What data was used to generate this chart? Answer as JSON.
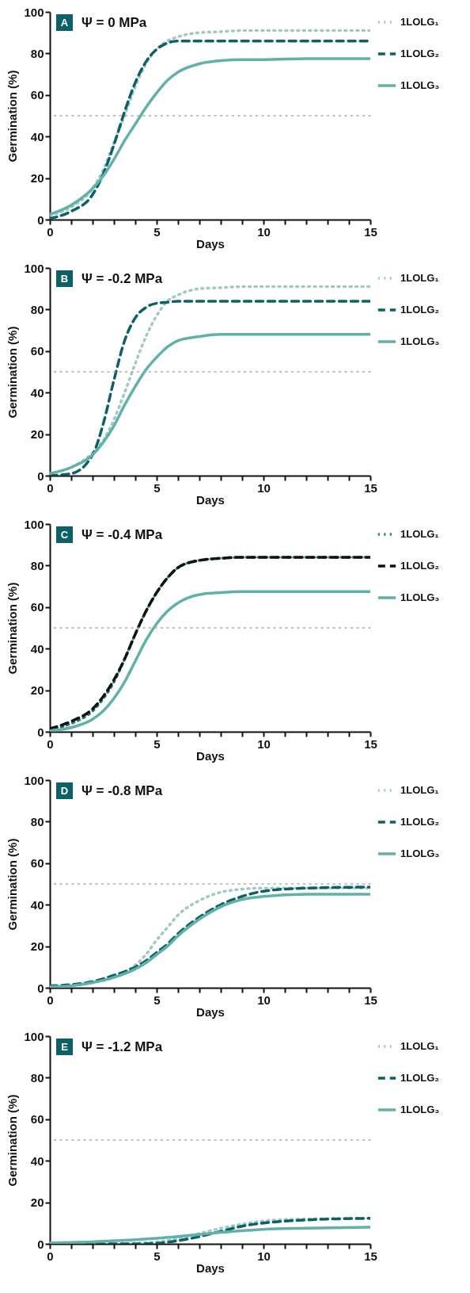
{
  "chart_data": [
    {
      "type": "line",
      "title": "Ψ = 0 MPa",
      "annotations": [
        "A"
      ],
      "xlabel": "Days",
      "ylabel": "Germination (%)",
      "xlim": [
        0,
        15
      ],
      "ylim": [
        0,
        100
      ],
      "xticks": [
        0,
        {
          "value": 1,
          "label": null
        },
        {
          "value": 2,
          "label": null
        },
        {
          "value": 3,
          "label": null
        },
        {
          "value": 4,
          "label": null
        },
        5,
        {
          "value": 6,
          "label": null
        },
        {
          "value": 7,
          "label": null
        },
        {
          "value": 8,
          "label": null
        },
        {
          "value": 9,
          "label": null
        },
        10,
        {
          "value": 11,
          "label": null
        },
        {
          "value": 12,
          "label": null
        },
        {
          "value": 13,
          "label": null
        },
        {
          "value": 14,
          "label": null
        },
        15
      ],
      "yticks": [
        0,
        20,
        40,
        60,
        80,
        100
      ],
      "legend": "top right",
      "ref_lines": [
        {
          "axis": "y",
          "value": 50,
          "color": "#aaaaaa",
          "line_style": "dotted"
        }
      ],
      "x": [
        0,
        1,
        2,
        2.5,
        3,
        3.5,
        4,
        4.5,
        5,
        5.5,
        6,
        7,
        8,
        9,
        10,
        12,
        15
      ],
      "series": [
        {
          "name": "1LOLG₁",
          "color": "#a3c9c6",
          "line_style": "dotted",
          "values": [
            2,
            6,
            15,
            24,
            37,
            50,
            64,
            75,
            82,
            86,
            88,
            90,
            90.5,
            91,
            91,
            91,
            91
          ]
        },
        {
          "name": "1LOLG₂",
          "color": "#0b6166",
          "line_style": "dashed",
          "values": [
            0.5,
            4,
            12,
            22,
            36,
            52,
            66,
            76,
            82,
            85,
            86,
            86,
            86,
            86,
            86,
            86,
            86
          ]
        },
        {
          "name": "1LOLG₃",
          "color": "#62b1a9",
          "line_style": "solid",
          "values": [
            2.5,
            7,
            15,
            21,
            29,
            38,
            46,
            54,
            61,
            67,
            71,
            75,
            76.5,
            77,
            77,
            77.5,
            77.5
          ]
        }
      ]
    },
    {
      "type": "line",
      "title": "Ψ = -0.2 MPa",
      "annotations": [
        "B"
      ],
      "xlabel": "Days",
      "ylabel": "Germination (%)",
      "xlim": [
        0,
        15
      ],
      "ylim": [
        0,
        100
      ],
      "xticks": [
        0,
        {
          "value": 1,
          "label": null
        },
        {
          "value": 2,
          "label": null
        },
        {
          "value": 3,
          "label": null
        },
        {
          "value": 4,
          "label": null
        },
        5,
        {
          "value": 6,
          "label": null
        },
        {
          "value": 7,
          "label": null
        },
        {
          "value": 8,
          "label": null
        },
        {
          "value": 9,
          "label": null
        },
        10,
        {
          "value": 11,
          "label": null
        },
        {
          "value": 12,
          "label": null
        },
        {
          "value": 13,
          "label": null
        },
        {
          "value": 14,
          "label": null
        },
        15
      ],
      "yticks": [
        0,
        20,
        40,
        60,
        80,
        100
      ],
      "legend": "top right",
      "ref_lines": [
        {
          "axis": "y",
          "value": 50,
          "color": "#aaaaaa",
          "line_style": "dotted"
        }
      ],
      "x": [
        0,
        1,
        2,
        2.5,
        3,
        3.5,
        4,
        4.5,
        5,
        5.5,
        6,
        7,
        8,
        9,
        10,
        12,
        15
      ],
      "series": [
        {
          "name": "1LOLG₁",
          "color": "#a3c9c6",
          "line_style": "dotted",
          "values": [
            1,
            4,
            11,
            17,
            27,
            40,
            54,
            67,
            77,
            84,
            87,
            90,
            90.5,
            91,
            91,
            91,
            91
          ]
        },
        {
          "name": "1LOLG₂",
          "color": "#0b6166",
          "line_style": "dashed",
          "values": [
            0,
            1,
            10,
            25,
            46,
            65,
            76,
            81,
            83,
            83.5,
            84,
            84,
            84,
            84,
            84,
            84,
            84
          ]
        },
        {
          "name": "1LOLG₃",
          "color": "#62b1a9",
          "line_style": "solid",
          "values": [
            1,
            4,
            10,
            16,
            24,
            34,
            43,
            51,
            57,
            62,
            65,
            67,
            68,
            68,
            68,
            68,
            68
          ]
        }
      ]
    },
    {
      "type": "line",
      "title": "Ψ = -0.4 MPa",
      "annotations": [
        "C"
      ],
      "xlabel": "Days",
      "ylabel": "Germination (%)",
      "xlim": [
        0,
        15
      ],
      "ylim": [
        0,
        100
      ],
      "xticks": [
        0,
        {
          "value": 1,
          "label": null
        },
        {
          "value": 2,
          "label": null
        },
        {
          "value": 3,
          "label": null
        },
        {
          "value": 4,
          "label": null
        },
        5,
        {
          "value": 6,
          "label": null
        },
        {
          "value": 7,
          "label": null
        },
        {
          "value": 8,
          "label": null
        },
        {
          "value": 9,
          "label": null
        },
        10,
        {
          "value": 11,
          "label": null
        },
        {
          "value": 12,
          "label": null
        },
        {
          "value": 13,
          "label": null
        },
        {
          "value": 14,
          "label": null
        },
        15
      ],
      "yticks": [
        0,
        20,
        40,
        60,
        80,
        100
      ],
      "legend": "top right",
      "ref_lines": [
        {
          "axis": "y",
          "value": 50,
          "color": "#aaaaaa",
          "line_style": "dotted"
        }
      ],
      "x": [
        0,
        1,
        2,
        2.5,
        3,
        3.5,
        4,
        4.5,
        5,
        5.5,
        6,
        7,
        8,
        9,
        10,
        12,
        15
      ],
      "series": [
        {
          "name": "1LOLG₁",
          "color": "#1f7a7c",
          "line_style": "dotted",
          "values": [
            1,
            4,
            10,
            16,
            24,
            35,
            47,
            58,
            67,
            74,
            79,
            82.5,
            83.5,
            84,
            84,
            84,
            84
          ]
        },
        {
          "name": "1LOLG₂",
          "color": "#111111",
          "line_style": "dashed",
          "values": [
            1.5,
            5,
            11,
            17,
            25,
            35,
            47,
            58,
            67,
            74,
            79,
            82.5,
            83.5,
            84,
            84,
            84,
            84
          ]
        },
        {
          "name": "1LOLG₃",
          "color": "#62b1a9",
          "line_style": "solid",
          "values": [
            0.5,
            2,
            6,
            10,
            16,
            24,
            34,
            44,
            52,
            58,
            62,
            66,
            67,
            67.5,
            67.5,
            67.5,
            67.5
          ]
        }
      ]
    },
    {
      "type": "line",
      "title": "Ψ = -0.8 MPa",
      "annotations": [
        "D"
      ],
      "xlabel": "Days",
      "ylabel": "Germination (%)",
      "xlim": [
        0,
        15
      ],
      "ylim": [
        0,
        100
      ],
      "xticks": [
        0,
        {
          "value": 1,
          "label": null
        },
        {
          "value": 2,
          "label": null
        },
        {
          "value": 3,
          "label": null
        },
        {
          "value": 4,
          "label": null
        },
        5,
        {
          "value": 6,
          "label": null
        },
        {
          "value": 7,
          "label": null
        },
        {
          "value": 8,
          "label": null
        },
        {
          "value": 9,
          "label": null
        },
        10,
        {
          "value": 11,
          "label": null
        },
        {
          "value": 12,
          "label": null
        },
        {
          "value": 13,
          "label": null
        },
        {
          "value": 14,
          "label": null
        },
        15
      ],
      "yticks": [
        0,
        20,
        40,
        60,
        80,
        100
      ],
      "legend": "top right",
      "ref_lines": [
        {
          "axis": "y",
          "value": 50,
          "color": "#aaaaaa",
          "line_style": "dotted"
        }
      ],
      "x": [
        0,
        1,
        2,
        3,
        4,
        4.5,
        5,
        5.5,
        6,
        7,
        8,
        9,
        10,
        12,
        15
      ],
      "series": [
        {
          "name": "1LOLG₁",
          "color": "#a3c9c6",
          "line_style": "dotted",
          "values": [
            0.5,
            1,
            2.5,
            5,
            11,
            16,
            23,
            29,
            35,
            42,
            46,
            47.5,
            48,
            48,
            48
          ]
        },
        {
          "name": "1LOLG₂",
          "color": "#0b6166",
          "line_style": "dashed",
          "values": [
            1,
            1.5,
            3,
            6,
            10,
            13,
            17,
            21,
            26,
            34,
            40,
            44,
            46.5,
            48,
            48.5
          ]
        },
        {
          "name": "1LOLG₃",
          "color": "#62b1a9",
          "line_style": "solid",
          "values": [
            0.5,
            1,
            2.5,
            5,
            9,
            12,
            16,
            20,
            25,
            33,
            39,
            42.5,
            44,
            45,
            45
          ]
        }
      ]
    },
    {
      "type": "line",
      "title": "Ψ = -1.2 MPa",
      "annotations": [
        "E"
      ],
      "xlabel": "Days",
      "ylabel": "Germination (%)",
      "xlim": [
        0,
        15
      ],
      "ylim": [
        0,
        100
      ],
      "xticks": [
        0,
        {
          "value": 1,
          "label": null
        },
        {
          "value": 2,
          "label": null
        },
        {
          "value": 3,
          "label": null
        },
        {
          "value": 4,
          "label": null
        },
        5,
        {
          "value": 6,
          "label": null
        },
        {
          "value": 7,
          "label": null
        },
        {
          "value": 8,
          "label": null
        },
        {
          "value": 9,
          "label": null
        },
        10,
        {
          "value": 11,
          "label": null
        },
        {
          "value": 12,
          "label": null
        },
        {
          "value": 13,
          "label": null
        },
        {
          "value": 14,
          "label": null
        },
        15
      ],
      "yticks": [
        0,
        20,
        40,
        60,
        80,
        100
      ],
      "legend": "top right",
      "ref_lines": [
        {
          "axis": "y",
          "value": 50,
          "color": "#aaaaaa",
          "line_style": "dotted"
        }
      ],
      "x": [
        0,
        1,
        2,
        3,
        4,
        5,
        6,
        7,
        8,
        9,
        10,
        12,
        15
      ],
      "series": [
        {
          "name": "1LOLG₁",
          "color": "#a3c9c6",
          "line_style": "dotted",
          "values": [
            0,
            0,
            0,
            0,
            0.3,
            1,
            2.5,
            5,
            7.5,
            9.5,
            11,
            12,
            12.3
          ]
        },
        {
          "name": "1LOLG₂",
          "color": "#0b6166",
          "line_style": "dashed",
          "values": [
            0,
            0,
            0,
            0,
            0,
            0.3,
            1.5,
            3.5,
            6,
            8.5,
            10,
            11.5,
            12.3
          ]
        },
        {
          "name": "1LOLG₃",
          "color": "#62b1a9",
          "line_style": "solid",
          "values": [
            0.5,
            0.7,
            1,
            1.5,
            2,
            2.7,
            3.5,
            4.5,
            5.5,
            6.3,
            7,
            7.5,
            8
          ]
        }
      ]
    }
  ]
}
